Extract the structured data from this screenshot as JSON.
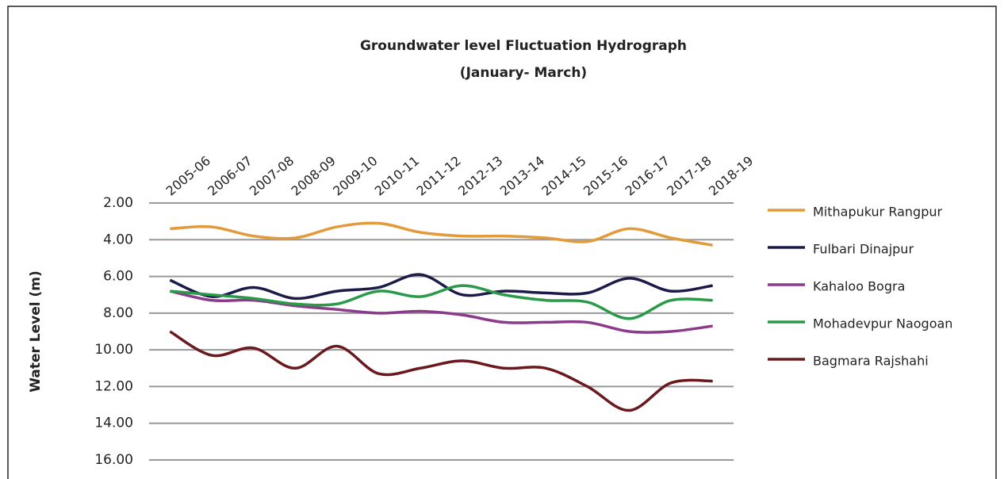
{
  "chart_data": {
    "type": "line",
    "title": "Groundwater level Fluctuation Hydrograph",
    "subtitle": "(January- March)",
    "y_label": "Water Level (m)",
    "categories": [
      "2005-06",
      "2006-07",
      "2007-08",
      "2008-09",
      "2009-10",
      "2010-11",
      "2011-12",
      "2012-13",
      "2013-14",
      "2014-15",
      "2015-16",
      "2016-17",
      "2017-18",
      "2018-19"
    ],
    "ylim": [
      2,
      16
    ],
    "y_inverted": true,
    "grid": true,
    "legend": "right",
    "yticks": [
      {
        "value": 2,
        "label": "2.00"
      },
      {
        "value": 4,
        "label": "4.00"
      },
      {
        "value": 6,
        "label": "6.00"
      },
      {
        "value": 8,
        "label": "8.00"
      },
      {
        "value": 10,
        "label": "10.00"
      },
      {
        "value": 12,
        "label": "12.00"
      },
      {
        "value": 14,
        "label": "14.00"
      },
      {
        "value": 16,
        "label": "16.00"
      }
    ],
    "series": [
      {
        "name": "Mithapukur Rangpur",
        "color": "#e39a3b",
        "values": [
          3.4,
          3.3,
          3.8,
          3.9,
          3.3,
          3.1,
          3.6,
          3.8,
          3.8,
          3.9,
          4.1,
          3.4,
          3.9,
          4.3
        ]
      },
      {
        "name": "Fulbari  Dinajpur",
        "color": "#1c1a48",
        "values": [
          6.2,
          7.1,
          6.6,
          7.2,
          6.8,
          6.6,
          5.9,
          7.0,
          6.8,
          6.9,
          6.9,
          6.1,
          6.8,
          6.5
        ]
      },
      {
        "name": "Kahaloo Bogra",
        "color": "#8c3a8c",
        "values": [
          6.8,
          7.3,
          7.3,
          7.6,
          7.8,
          8.0,
          7.9,
          8.1,
          8.5,
          8.5,
          8.5,
          9.0,
          9.0,
          8.7
        ]
      },
      {
        "name": "Mohadevpur Naogoan",
        "color": "#2a9a4a",
        "values": [
          6.8,
          7.0,
          7.2,
          7.5,
          7.5,
          6.8,
          7.1,
          6.5,
          7.0,
          7.3,
          7.4,
          8.3,
          7.3,
          7.3
        ]
      },
      {
        "name": "Bagmara Rajshahi",
        "color": "#6a1a1e",
        "values": [
          9.0,
          10.3,
          9.9,
          11.0,
          9.8,
          11.3,
          11.0,
          10.6,
          11.0,
          11.0,
          12.0,
          13.3,
          11.8,
          11.7
        ]
      }
    ]
  }
}
